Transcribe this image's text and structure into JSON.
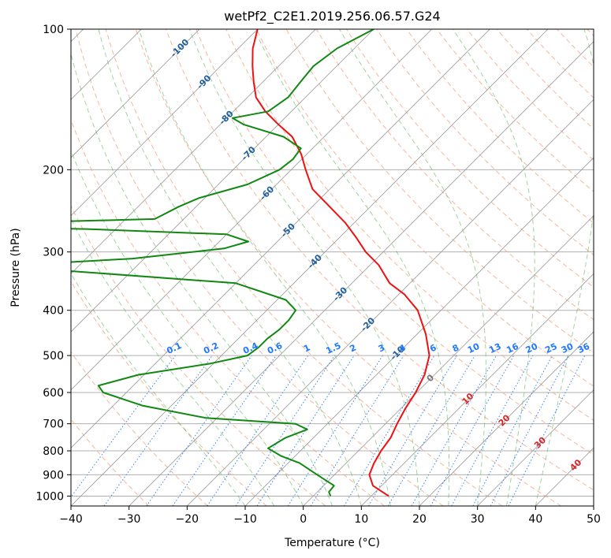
{
  "chart_data": {
    "type": "line",
    "title": "wetPf2_C2E1.2019.256.06.57.G24",
    "xlabel": "Temperature (°C)",
    "ylabel": "Pressure (hPa)",
    "xlim": [
      -40,
      50
    ],
    "ylim": [
      1050,
      100
    ],
    "y_scale": "log",
    "x_ticks": [
      -40,
      -30,
      -20,
      -10,
      0,
      10,
      20,
      30,
      40,
      50
    ],
    "y_ticks": [
      100,
      200,
      300,
      400,
      500,
      600,
      700,
      800,
      900,
      1000
    ],
    "x_tick_labels": [
      "−40",
      "−30",
      "−20",
      "−10",
      "0",
      "10",
      "20",
      "30",
      "40",
      "50"
    ],
    "y_tick_labels": [
      "100",
      "200",
      "300",
      "400",
      "500",
      "600",
      "700",
      "800",
      "900",
      "1000"
    ],
    "skew_degrees": 45,
    "grid": true,
    "colors": {
      "temperature": "#ee1111",
      "dewpoint": "#118811",
      "dry_adiabat": "#f4a582",
      "moist_adiabat": "#2ca02c",
      "mixing_ratio": "#1f78ff",
      "isotherm": "#999999",
      "isotherm_label": "#1f5f9f",
      "isotherm_label_warm": "#d62728",
      "isotherm_label_zero": "#777777"
    },
    "series": [
      {
        "key": "temperature",
        "points": [
          [
            13.0,
            1000
          ],
          [
            8.5,
            950
          ],
          [
            6.0,
            900
          ],
          [
            4.8,
            850
          ],
          [
            3.9,
            800
          ],
          [
            3.3,
            750
          ],
          [
            2.0,
            700
          ],
          [
            0.8,
            650
          ],
          [
            -0.2,
            600
          ],
          [
            -1.7,
            550
          ],
          [
            -4.2,
            500
          ],
          [
            -8.5,
            450
          ],
          [
            -14.0,
            400
          ],
          [
            -19.0,
            370
          ],
          [
            -23.5,
            350
          ],
          [
            -28.5,
            320
          ],
          [
            -33.0,
            300
          ],
          [
            -37.0,
            280
          ],
          [
            -41.5,
            260
          ],
          [
            -47.0,
            240
          ],
          [
            -53.0,
            220
          ],
          [
            -57.5,
            200
          ],
          [
            -61.0,
            185
          ],
          [
            -65.5,
            170
          ],
          [
            -70.0,
            160
          ],
          [
            -74.5,
            150
          ],
          [
            -78.5,
            140
          ],
          [
            -81.5,
            130
          ],
          [
            -84.5,
            120
          ],
          [
            -87.5,
            110
          ],
          [
            -90.0,
            100
          ]
        ]
      },
      {
        "key": "dewpoint",
        "points": [
          [
            3.0,
            1000
          ],
          [
            2.0,
            980
          ],
          [
            1.8,
            950
          ],
          [
            -3.0,
            900
          ],
          [
            -8.0,
            850
          ],
          [
            -12.5,
            820
          ],
          [
            -16.0,
            790
          ],
          [
            -14.8,
            750
          ],
          [
            -12.5,
            720
          ],
          [
            -15.5,
            700
          ],
          [
            -32.0,
            680
          ],
          [
            -45.0,
            640
          ],
          [
            -54.0,
            600
          ],
          [
            -56.0,
            580
          ],
          [
            -51.0,
            550
          ],
          [
            -40.5,
            520
          ],
          [
            -35.5,
            500
          ],
          [
            -35.0,
            480
          ],
          [
            -35.0,
            460
          ],
          [
            -34.5,
            440
          ],
          [
            -34.5,
            420
          ],
          [
            -35.0,
            400
          ],
          [
            -38.5,
            380
          ],
          [
            -50.0,
            350
          ],
          [
            -80.0,
            330
          ],
          [
            -100.0,
            325
          ],
          [
            -72.0,
            310
          ],
          [
            -58.0,
            295
          ],
          [
            -55.0,
            285
          ],
          [
            -60.0,
            275
          ],
          [
            -85.0,
            268
          ],
          [
            -110.0,
            265
          ],
          [
            -100.0,
            260
          ],
          [
            -75.0,
            255
          ],
          [
            -73.0,
            240
          ],
          [
            -71.0,
            230
          ],
          [
            -65.0,
            215
          ],
          [
            -62.0,
            200
          ],
          [
            -61.5,
            190
          ],
          [
            -62.0,
            180
          ],
          [
            -67.0,
            170
          ],
          [
            -76.0,
            160
          ],
          [
            -79.0,
            155
          ],
          [
            -74.0,
            150
          ],
          [
            -73.0,
            140
          ],
          [
            -73.5,
            130
          ],
          [
            -74.0,
            120
          ],
          [
            -73.0,
            110
          ],
          [
            -70.0,
            100
          ]
        ]
      }
    ],
    "isotherm_labels": {
      "values": [
        -100,
        -90,
        -80,
        -70,
        -60,
        -50,
        -40,
        -30,
        -20,
        -10,
        0,
        10,
        20,
        30,
        40
      ],
      "texts": [
        "-100",
        "-90",
        "-80",
        "-70",
        "-60",
        "-50",
        "-40",
        "-30",
        "-20",
        "-10",
        "0",
        "10",
        "20",
        "30",
        "40"
      ],
      "pressures": [
        110,
        130,
        155,
        185,
        225,
        270,
        315,
        370,
        430,
        495,
        560,
        620,
        690,
        770,
        860
      ]
    },
    "mixing_ratio_labels": {
      "values": [
        0.1,
        0.2,
        0.4,
        0.6,
        1,
        1.5,
        2,
        3,
        4,
        6,
        8,
        10,
        13,
        16,
        20,
        25,
        30,
        36
      ],
      "texts": [
        "0.1",
        "0.2",
        "0.4",
        "0.6",
        "1",
        "1.5",
        "2",
        "3",
        "4",
        "6",
        "8",
        "10",
        "13",
        "16",
        "20",
        "25",
        "30",
        "36"
      ]
    },
    "dry_adiabats_c": [
      -30,
      -20,
      -10,
      0,
      10,
      20,
      30,
      40,
      50,
      60,
      70,
      80,
      90,
      100,
      110,
      120,
      130,
      140,
      150,
      160,
      170,
      180,
      190
    ],
    "moist_adiabats_c": [
      -10,
      -5,
      0,
      5,
      10,
      15,
      20,
      25,
      30,
      35,
      40
    ]
  }
}
